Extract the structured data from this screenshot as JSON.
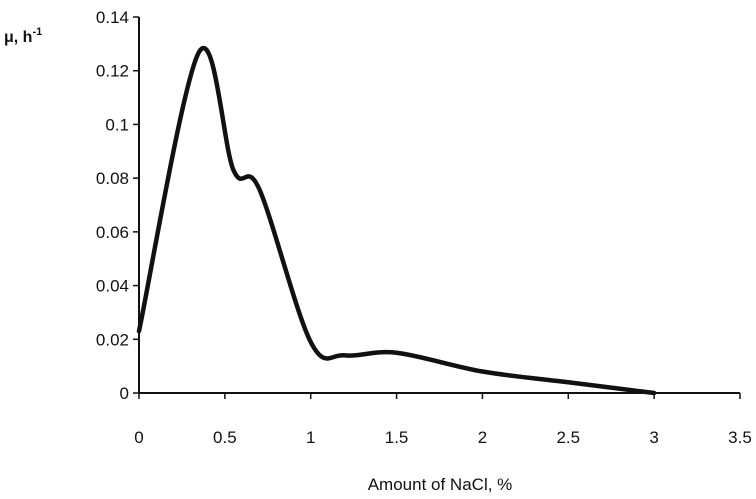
{
  "chart_data": {
    "type": "line",
    "smooth": true,
    "title": "",
    "ylabel_main": "μ, h",
    "ylabel_sup": "-1",
    "xlabel": "Amount of NaCl, %",
    "xlim": [
      0,
      3.5
    ],
    "ylim": [
      0,
      0.14
    ],
    "x_ticks": [
      "0",
      "0.5",
      "1",
      "1.5",
      "2",
      "2.5",
      "3",
      "3.5"
    ],
    "y_ticks": [
      "0",
      "0.02",
      "0.04",
      "0.06",
      "0.08",
      "0.1",
      "0.12",
      "0.14"
    ],
    "grid": false,
    "legend": "none",
    "line_color": "#111111",
    "series": [
      {
        "x": [
          0,
          0.35,
          0.55,
          0.7,
          1.0,
          1.2,
          1.5,
          2.0,
          2.5,
          3.0
        ],
        "y": [
          0.023,
          0.127,
          0.083,
          0.076,
          0.019,
          0.014,
          0.015,
          0.008,
          0.004,
          0.0
        ]
      }
    ]
  }
}
